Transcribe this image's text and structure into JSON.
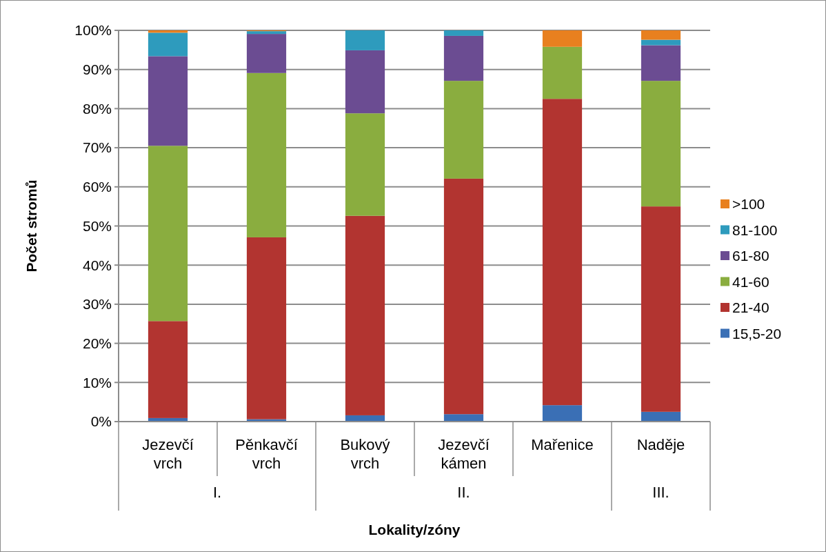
{
  "chart_data": {
    "type": "bar",
    "stacked": true,
    "xlabel": "Lokality/zóny",
    "ylabel": "Počet stromů",
    "categories": [
      "Jezevčí vrch",
      "Pěnkavčí vrch",
      "Bukový vrch",
      "Jezevčí kámen",
      "Mařenice",
      "Naděje"
    ],
    "series": [
      {
        "name": "15,5-20",
        "color": "#3a6fb5",
        "values": [
          0.9,
          0.6,
          1.6,
          1.9,
          4.2,
          2.5
        ]
      },
      {
        "name": "21-40",
        "color": "#b23430",
        "values": [
          24.8,
          46.5,
          51.0,
          60.2,
          78.3,
          52.5
        ]
      },
      {
        "name": "41-60",
        "color": "#8aad3f",
        "values": [
          44.8,
          42.0,
          26.2,
          25.0,
          13.3,
          32.1
        ]
      },
      {
        "name": "61-80",
        "color": "#6b4c92",
        "values": [
          22.9,
          10.0,
          16.1,
          11.5,
          0,
          9.1
        ]
      },
      {
        "name": "81-100",
        "color": "#2e9bbd",
        "values": [
          6.0,
          0.7,
          5.1,
          1.4,
          0,
          1.4
        ]
      },
      {
        "name": ">100",
        "color": "#e8801f",
        "values": [
          0.6,
          0.2,
          0,
          0,
          4.2,
          2.4
        ]
      }
    ],
    "ylim": [
      0,
      100
    ],
    "yticks": [
      {
        "value": 0,
        "label": "0%"
      },
      {
        "value": 10,
        "label": "10%"
      },
      {
        "value": 20,
        "label": "20%"
      },
      {
        "value": 30,
        "label": "30%"
      },
      {
        "value": 40,
        "label": "40%"
      },
      {
        "value": 50,
        "label": "50%"
      },
      {
        "value": 60,
        "label": "60%"
      },
      {
        "value": 70,
        "label": "70%"
      },
      {
        "value": 80,
        "label": "80%"
      },
      {
        "value": 90,
        "label": "90%"
      },
      {
        "value": 100,
        "label": "100%"
      }
    ],
    "grid": "y",
    "legend": "right",
    "annotations": [
      "I.",
      "II.",
      "III."
    ]
  }
}
